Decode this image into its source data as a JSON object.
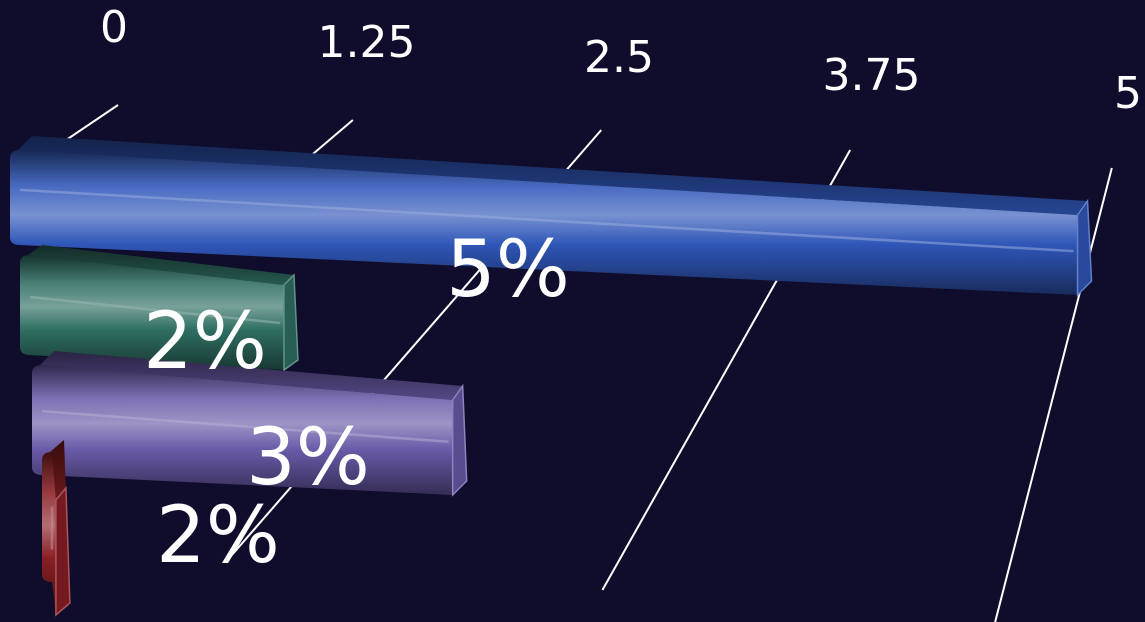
{
  "chart_data": {
    "type": "bar",
    "orientation": "horizontal",
    "style": "3d-perspective",
    "xlim": [
      0,
      5
    ],
    "ticks": [
      {
        "value": 0,
        "label": "0"
      },
      {
        "value": 1.25,
        "label": "1.25"
      },
      {
        "value": 2.5,
        "label": "2.5"
      },
      {
        "value": 3.75,
        "label": "3.75"
      },
      {
        "value": 5,
        "label": "5"
      }
    ],
    "bars": [
      {
        "value": 5,
        "label": "5%",
        "color": "#2f56b8"
      },
      {
        "value": 2,
        "label": "2%",
        "color": "#2f6f62"
      },
      {
        "value": 3,
        "label": "3%",
        "color": "#6a5aa8"
      },
      {
        "value": 2,
        "label": "2%",
        "color": "#8a1f24"
      }
    ],
    "background": "#0f0c2c",
    "gridlines": true
  }
}
